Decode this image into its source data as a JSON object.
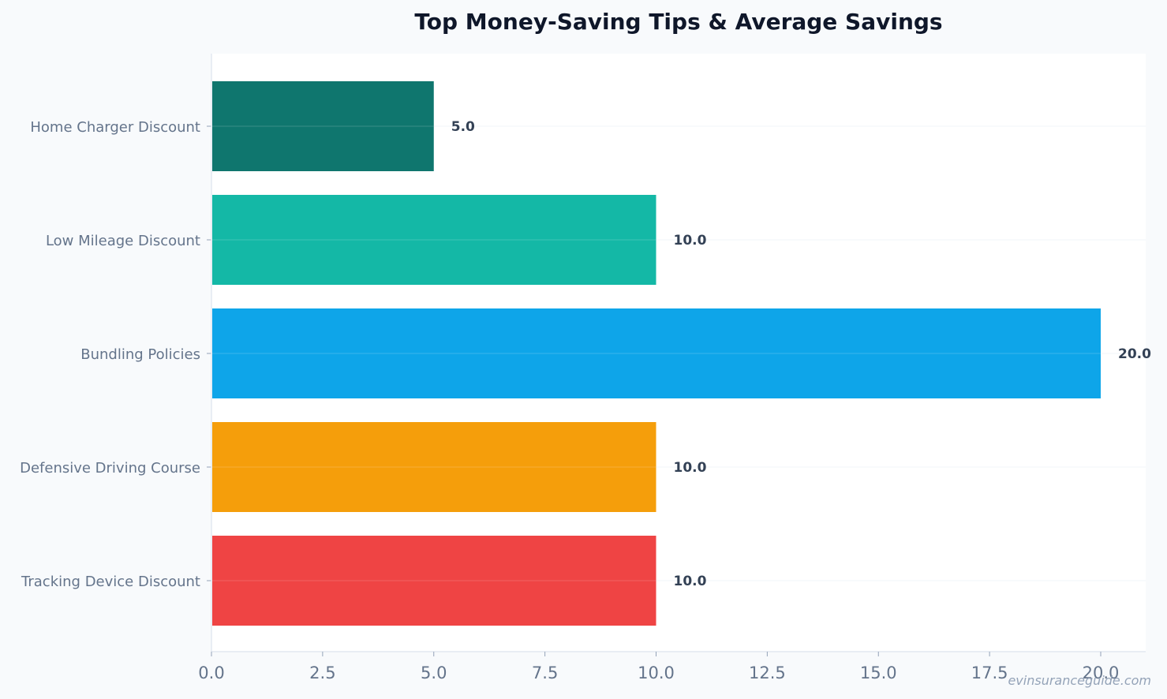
{
  "chart_data": {
    "type": "bar",
    "orientation": "horizontal",
    "title": "Top Money-Saving Tips & Average Savings",
    "xlabel": "",
    "ylabel": "",
    "categories": [
      "Home Charger Discount",
      "Low Mileage Discount",
      "Bundling Policies",
      "Defensive Driving Course",
      "Tracking Device Discount"
    ],
    "values": [
      5.0,
      10.0,
      20.0,
      10.0,
      10.0
    ],
    "value_labels": [
      "5.0",
      "10.0",
      "20.0",
      "10.0",
      "10.0"
    ],
    "colors": [
      "#0f766e",
      "#14b8a6",
      "#0ea5e9",
      "#f59e0b",
      "#ef4444"
    ],
    "xlim": [
      0,
      21
    ],
    "xticks": [
      0.0,
      2.5,
      5.0,
      7.5,
      10.0,
      12.5,
      15.0,
      17.5,
      20.0
    ],
    "xtick_labels": [
      "0.0",
      "2.5",
      "5.0",
      "7.5",
      "10.0",
      "12.5",
      "15.0",
      "17.5",
      "20.0"
    ],
    "grid": true,
    "legend": "none"
  },
  "watermark": "evinsuranceguide.com"
}
